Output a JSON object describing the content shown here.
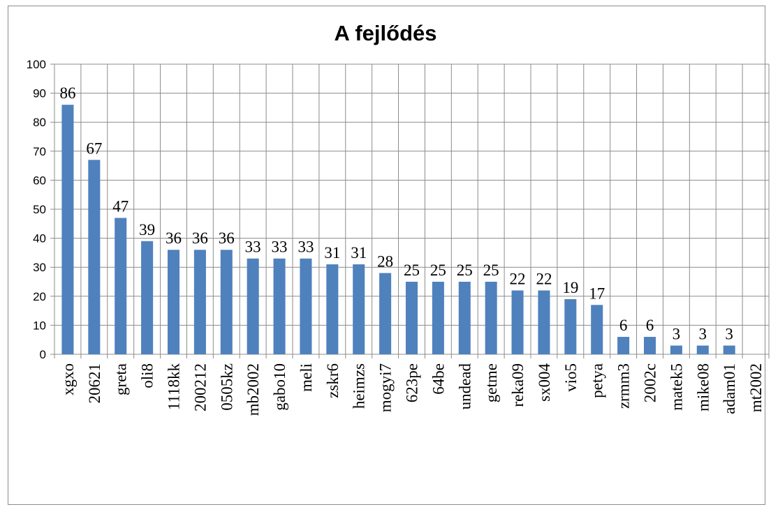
{
  "chart_data": {
    "type": "bar",
    "title": "A fejlődés",
    "xlabel": "",
    "ylabel": "",
    "ylim": [
      0,
      100
    ],
    "yticks": [
      0,
      10,
      20,
      30,
      40,
      50,
      60,
      70,
      80,
      90,
      100
    ],
    "grid": "both",
    "legend": "none",
    "bar_color": "#4f81bd",
    "categories": [
      "xgxo",
      "20621",
      "greta",
      "oli8",
      "1118kk",
      "200212",
      "0505kz",
      "mb2002",
      "gabo10",
      "meli",
      "zskr6",
      "heimzs",
      "mogyi7",
      "623pe",
      "64be",
      "undead",
      "getme",
      "reka09",
      "sx004",
      "vio5",
      "petya",
      "zrmm3",
      "2002c",
      "matek5",
      "mike08",
      "adam01",
      "mt2002"
    ],
    "values": [
      86,
      67,
      47,
      39,
      36,
      36,
      36,
      33,
      33,
      33,
      31,
      31,
      28,
      25,
      25,
      25,
      25,
      22,
      22,
      19,
      17,
      6,
      6,
      3,
      3,
      3,
      null
    ],
    "data_labels": [
      "86",
      "67",
      "47",
      "39",
      "36",
      "36",
      "36",
      "33",
      "33",
      "33",
      "31",
      "31",
      "28",
      "25",
      "25",
      "25",
      "25",
      "22",
      "22",
      "19",
      "17",
      "6",
      "6",
      "3",
      "3",
      "3",
      ""
    ]
  }
}
